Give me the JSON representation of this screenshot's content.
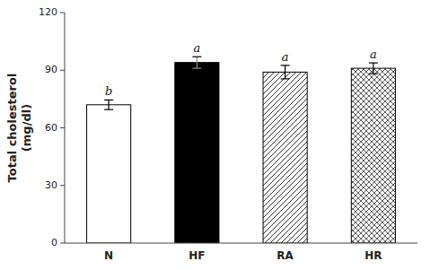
{
  "chart_data": {
    "type": "bar",
    "categories": [
      "N",
      "HF",
      "RA",
      "HR"
    ],
    "values": [
      72.0,
      94.0,
      89.0,
      91.0
    ],
    "errors": [
      2.5,
      3.0,
      3.5,
      2.8
    ],
    "annotations": [
      "b",
      "a",
      "a",
      "a"
    ],
    "ylabel": "Total cholesterol\n(mg/dl)",
    "ylim": [
      0,
      120
    ],
    "yticks": [
      0,
      30,
      60,
      90,
      120
    ],
    "colors": [
      "white",
      "black",
      "white",
      "white"
    ],
    "grid": false
  }
}
